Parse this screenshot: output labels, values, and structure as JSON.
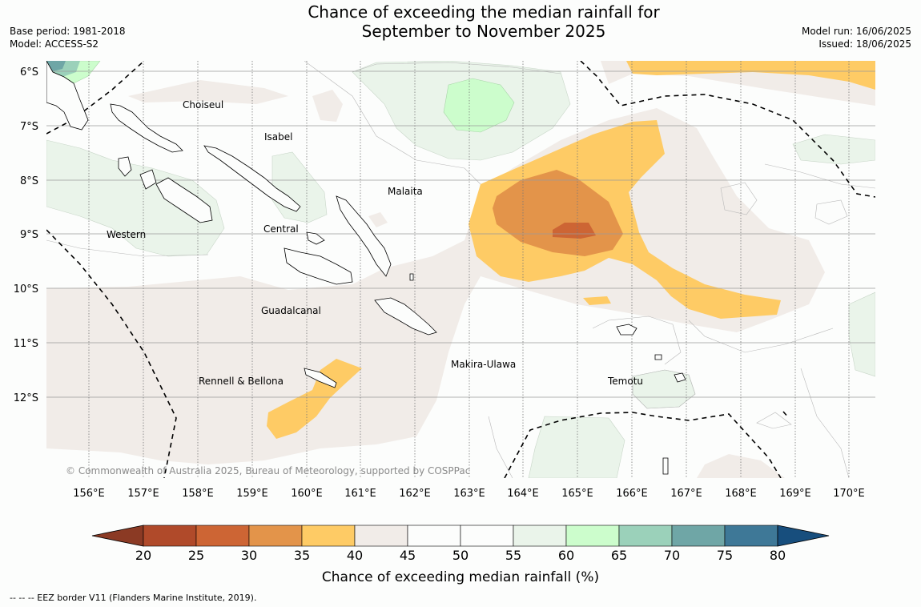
{
  "title": {
    "line1": "Chance of exceeding the median rainfall for",
    "line2": "September to November 2025"
  },
  "meta_left": {
    "base_period": "Base period: 1981-2018",
    "model": "Model: ACCESS-S2"
  },
  "meta_right": {
    "model_run": "Model run: 16/06/2025",
    "issued": "Issued: 18/06/2025"
  },
  "map": {
    "lat_labels": [
      "6°S",
      "7°S",
      "8°S",
      "9°S",
      "10°S",
      "11°S",
      "12°S"
    ],
    "lon_labels": [
      "156°E",
      "157°E",
      "158°E",
      "159°E",
      "160°E",
      "161°E",
      "162°E",
      "163°E",
      "164°E",
      "165°E",
      "166°E",
      "167°E",
      "168°E",
      "169°E",
      "170°E"
    ],
    "provinces": {
      "choiseul": "Choiseul",
      "isabel": "Isabel",
      "malaita": "Malaita",
      "western": "Western",
      "central": "Central",
      "guadalcanal": "Guadalcanal",
      "makira_ulawa": "Makira-Ulawa",
      "rennell_bellona": "Rennell & Bellona",
      "temotu": "Temotu"
    },
    "copyright": "© Commonwealth of Australia 2025, Bureau of Meteorology, supported by COSPPac"
  },
  "colorbar": {
    "ticks": [
      "20",
      "25",
      "30",
      "35",
      "40",
      "45",
      "50",
      "55",
      "60",
      "65",
      "70",
      "75",
      "80"
    ],
    "colors": [
      "#8b3a24",
      "#b04a2a",
      "#cd6534",
      "#e3944a",
      "#fecb65",
      "#f1ece8",
      "#fcfdfc",
      "#fcfdfc",
      "#eaf4ea",
      "#ccfdcc",
      "#9bd1ba",
      "#6fa6a6",
      "#3e7897",
      "#174e7d"
    ],
    "label": "Chance of exceeding median rainfall (%)"
  },
  "footer": "--  --  -- EEZ border V11 (Flanders Marine Institute, 2019)."
}
